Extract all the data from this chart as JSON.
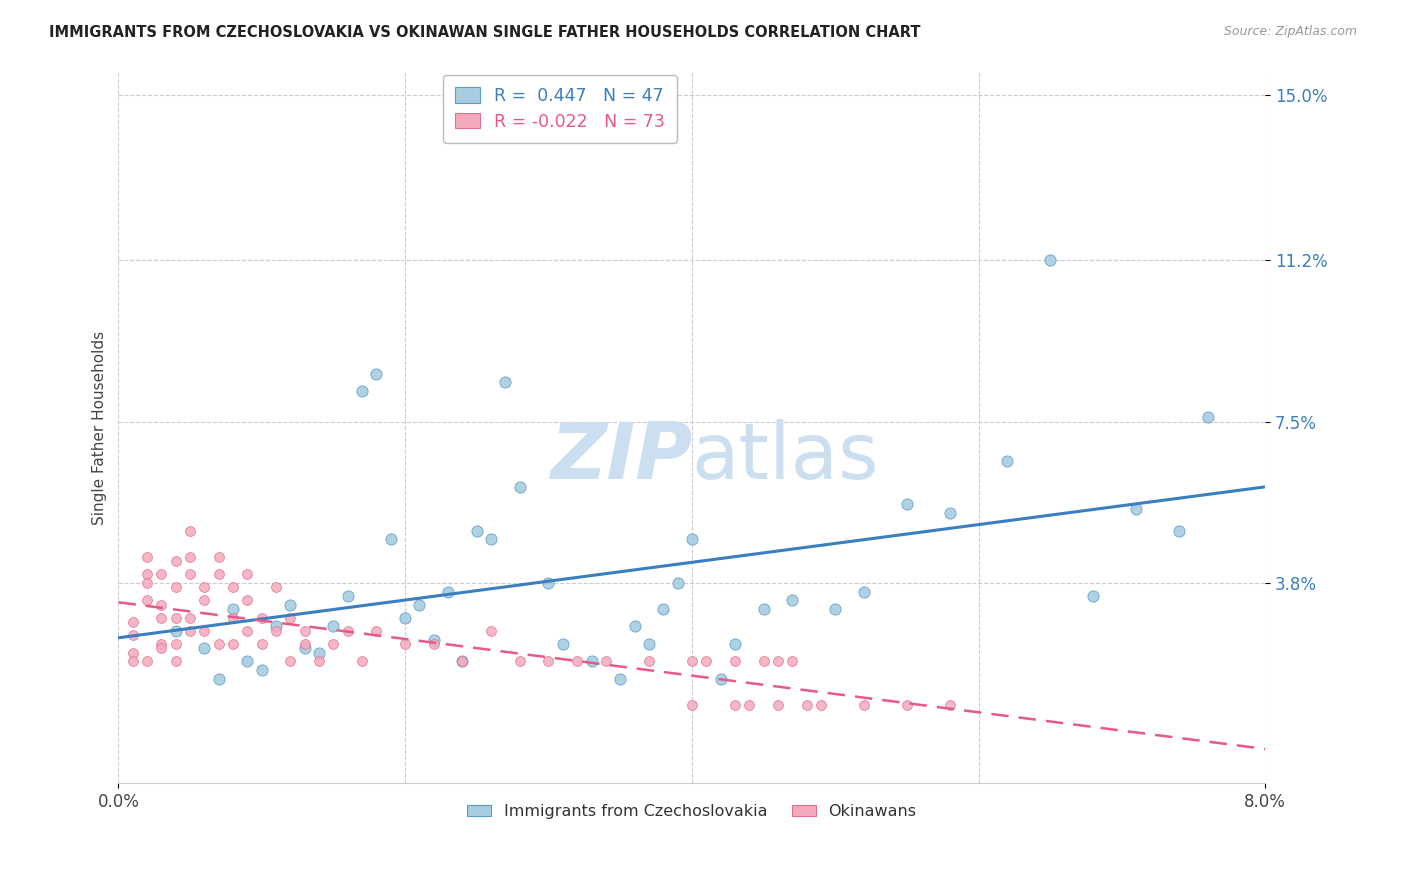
{
  "title": "IMMIGRANTS FROM CZECHOSLOVAKIA VS OKINAWAN SINGLE FATHER HOUSEHOLDS CORRELATION CHART",
  "source": "Source: ZipAtlas.com",
  "ylabel": "Single Father Households",
  "xlim": [
    0.0,
    0.08
  ],
  "ylim": [
    -0.008,
    0.155
  ],
  "ytick_vals": [
    0.038,
    0.075,
    0.112,
    0.15
  ],
  "ytick_labels": [
    "3.8%",
    "7.5%",
    "11.2%",
    "15.0%"
  ],
  "legend1_r": "0.447",
  "legend1_n": "47",
  "legend2_r": "-0.022",
  "legend2_n": "73",
  "blue_color": "#a8cce0",
  "blue_edge_color": "#5b9dc9",
  "blue_line_color": "#3a7fbf",
  "pink_color": "#f4aabc",
  "pink_edge_color": "#e07090",
  "pink_line_color": "#e85888",
  "watermark_zip": "ZIP",
  "watermark_atlas": "atlas",
  "watermark_color": "#ccdff0",
  "blue_scatter_x": [
    0.004,
    0.006,
    0.007,
    0.008,
    0.009,
    0.01,
    0.011,
    0.012,
    0.013,
    0.014,
    0.015,
    0.016,
    0.017,
    0.018,
    0.019,
    0.02,
    0.021,
    0.022,
    0.023,
    0.024,
    0.025,
    0.026,
    0.027,
    0.028,
    0.03,
    0.031,
    0.033,
    0.035,
    0.036,
    0.037,
    0.038,
    0.039,
    0.04,
    0.042,
    0.043,
    0.045,
    0.047,
    0.05,
    0.052,
    0.055,
    0.058,
    0.062,
    0.065,
    0.068,
    0.071,
    0.074,
    0.076
  ],
  "blue_scatter_y": [
    0.027,
    0.023,
    0.016,
    0.032,
    0.02,
    0.018,
    0.028,
    0.033,
    0.023,
    0.022,
    0.028,
    0.035,
    0.082,
    0.086,
    0.048,
    0.03,
    0.033,
    0.025,
    0.036,
    0.02,
    0.05,
    0.048,
    0.084,
    0.06,
    0.038,
    0.024,
    0.02,
    0.016,
    0.028,
    0.024,
    0.032,
    0.038,
    0.048,
    0.016,
    0.024,
    0.032,
    0.034,
    0.032,
    0.036,
    0.056,
    0.054,
    0.066,
    0.112,
    0.035,
    0.055,
    0.05,
    0.076
  ],
  "pink_scatter_x": [
    0.001,
    0.001,
    0.001,
    0.001,
    0.002,
    0.002,
    0.002,
    0.002,
    0.002,
    0.003,
    0.003,
    0.003,
    0.003,
    0.003,
    0.004,
    0.004,
    0.004,
    0.004,
    0.004,
    0.005,
    0.005,
    0.005,
    0.005,
    0.005,
    0.006,
    0.006,
    0.006,
    0.007,
    0.007,
    0.007,
    0.008,
    0.008,
    0.008,
    0.009,
    0.009,
    0.009,
    0.01,
    0.01,
    0.011,
    0.011,
    0.012,
    0.012,
    0.013,
    0.013,
    0.014,
    0.015,
    0.016,
    0.017,
    0.018,
    0.02,
    0.022,
    0.024,
    0.026,
    0.028,
    0.03,
    0.032,
    0.034,
    0.037,
    0.04,
    0.043,
    0.046,
    0.049,
    0.052,
    0.055,
    0.058,
    0.041,
    0.043,
    0.044,
    0.045,
    0.046,
    0.047,
    0.048,
    0.04
  ],
  "pink_scatter_y": [
    0.026,
    0.029,
    0.022,
    0.02,
    0.04,
    0.034,
    0.02,
    0.044,
    0.038,
    0.04,
    0.03,
    0.024,
    0.033,
    0.023,
    0.037,
    0.043,
    0.03,
    0.024,
    0.02,
    0.05,
    0.044,
    0.04,
    0.027,
    0.03,
    0.034,
    0.037,
    0.027,
    0.044,
    0.04,
    0.024,
    0.037,
    0.03,
    0.024,
    0.034,
    0.04,
    0.027,
    0.03,
    0.024,
    0.027,
    0.037,
    0.02,
    0.03,
    0.027,
    0.024,
    0.02,
    0.024,
    0.027,
    0.02,
    0.027,
    0.024,
    0.024,
    0.02,
    0.027,
    0.02,
    0.02,
    0.02,
    0.02,
    0.02,
    0.02,
    0.02,
    0.02,
    0.01,
    0.01,
    0.01,
    0.01,
    0.02,
    0.01,
    0.01,
    0.02,
    0.01,
    0.02,
    0.01,
    0.01
  ]
}
